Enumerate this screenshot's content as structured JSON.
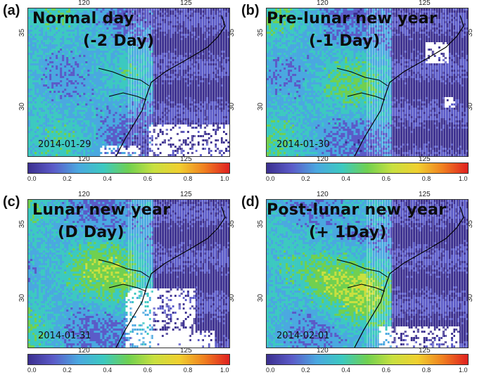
{
  "panels": [
    {
      "id": "a",
      "letter": "(a)",
      "title1": "Normal day",
      "title2": "(-2 Day)",
      "date": "2014-01-29",
      "intensity": 0.15,
      "whiteRegions": [
        [
          0.6,
          0.78,
          0.4,
          0.22
        ],
        [
          0.35,
          0.92,
          0.2,
          0.08
        ]
      ],
      "hotspot": [
        0.45,
        0.4
      ]
    },
    {
      "id": "b",
      "letter": "(b)",
      "title1": "Pre-lunar new year",
      "title2": "(-1 Day)",
      "date": "2014-01-30",
      "intensity": 0.35,
      "whiteRegions": [
        [
          0.78,
          0.22,
          0.12,
          0.14
        ],
        [
          0.88,
          0.6,
          0.05,
          0.06
        ]
      ],
      "hotspot": [
        0.5,
        0.55
      ]
    },
    {
      "id": "c",
      "letter": "(c)",
      "title1": "Lunar new year",
      "title2": "(D Day)",
      "date": "2014-01-31",
      "intensity": 0.6,
      "whiteRegions": [
        [
          0.48,
          0.6,
          0.35,
          0.4
        ],
        [
          0.62,
          0.88,
          0.3,
          0.12
        ]
      ],
      "hotspot": [
        0.48,
        0.5
      ]
    },
    {
      "id": "d",
      "letter": "(d)",
      "title1": "Post-lunar new year",
      "title2": "(+ 1Day)",
      "date": "2014-02-01",
      "intensity": 0.85,
      "whiteRegions": [
        [
          0.55,
          0.85,
          0.4,
          0.15
        ]
      ],
      "hotspot": [
        0.48,
        0.58
      ]
    }
  ],
  "axes": {
    "top_ticks": [
      "120",
      "125"
    ],
    "bottom_ticks": [
      "120",
      "125"
    ],
    "left_ticks": [
      "35",
      "30"
    ],
    "right_ticks": [
      "35",
      "30"
    ]
  },
  "colorbar": {
    "ticks": [
      "0.0",
      "0.2",
      "0.4",
      "0.6",
      "0.8",
      "1.0"
    ],
    "colors": [
      "#3b2f8f",
      "#5b5bc8",
      "#4aa8e0",
      "#3cc9c0",
      "#70d050",
      "#c8e040",
      "#f0d030",
      "#f08020",
      "#e02020"
    ]
  }
}
